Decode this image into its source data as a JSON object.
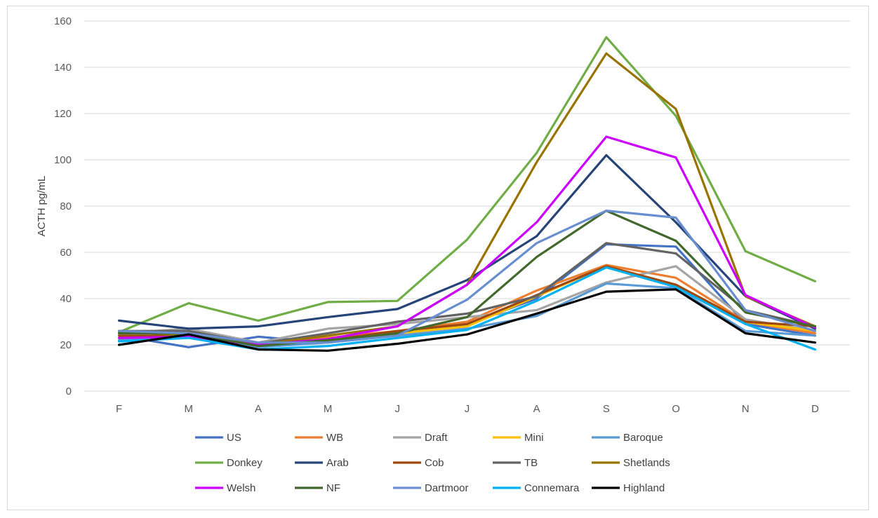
{
  "chart_data": {
    "type": "line",
    "title": "",
    "xlabel": "",
    "ylabel": "ACTH  pg/mL",
    "ylim": [
      0,
      160
    ],
    "yticks": [
      0,
      20,
      40,
      60,
      80,
      100,
      120,
      140,
      160
    ],
    "grid": "horizontal",
    "legend_position": "bottom",
    "categories": [
      "F",
      "M",
      "A",
      "M",
      "J",
      "J",
      "A",
      "S",
      "O",
      "N",
      "D"
    ],
    "series": [
      {
        "name": "US",
        "color": "#4472C4",
        "values": [
          24,
          19,
          23.5,
          21,
          25,
          29,
          40,
          63.5,
          62.5,
          29,
          24
        ]
      },
      {
        "name": "WB",
        "color": "#ED7D31",
        "values": [
          23,
          24,
          20,
          23,
          26,
          30,
          43.5,
          54.5,
          49,
          30,
          25
        ]
      },
      {
        "name": "Draft",
        "color": "#A5A5A5",
        "values": [
          25,
          27,
          21,
          27,
          29,
          32,
          35,
          47,
          54,
          31,
          26
        ]
      },
      {
        "name": "Mini",
        "color": "#FFC000",
        "values": [
          23,
          25,
          20,
          22,
          25,
          28,
          41,
          54,
          46,
          30,
          26
        ]
      },
      {
        "name": "Baroque",
        "color": "#5B9BD5",
        "values": [
          22,
          24,
          19,
          21,
          24,
          27,
          32.5,
          46.5,
          44.5,
          26,
          24
        ]
      },
      {
        "name": "Donkey",
        "color": "#70AD47",
        "values": [
          25.5,
          38,
          30.5,
          38.5,
          39,
          65.5,
          103,
          153,
          119,
          60.5,
          47.5
        ]
      },
      {
        "name": "Arab",
        "color": "#264478",
        "values": [
          30.5,
          27,
          28,
          32,
          35.5,
          48,
          67,
          102,
          73,
          41,
          27
        ]
      },
      {
        "name": "Cob",
        "color": "#9E480E",
        "values": [
          24,
          24,
          20,
          22,
          26,
          29,
          41.5,
          54,
          46,
          30,
          28
        ]
      },
      {
        "name": "TB",
        "color": "#636363",
        "values": [
          26,
          26,
          20.5,
          25,
          30,
          33.5,
          41,
          64,
          59.5,
          35,
          28
        ]
      },
      {
        "name": "Shetlands",
        "color": "#997300",
        "values": [
          26,
          24,
          20,
          24,
          28,
          46,
          99,
          146,
          122,
          41,
          28
        ]
      },
      {
        "name": "Welsh",
        "color": "#CC00FF",
        "values": [
          23,
          23.5,
          20,
          22.5,
          28,
          46,
          73,
          110,
          101,
          41.5,
          27.5
        ]
      },
      {
        "name": "NF",
        "color": "#43682B",
        "values": [
          25,
          25,
          19.5,
          22,
          25,
          32,
          58,
          78,
          65,
          34,
          28
        ]
      },
      {
        "name": "Dartmoor",
        "color": "#698ED0",
        "values": [
          26,
          25,
          21,
          21,
          24,
          39.5,
          64,
          78,
          75,
          35,
          26
        ]
      },
      {
        "name": "Connemara",
        "color": "#00B0F0",
        "values": [
          21.5,
          23,
          18,
          19.5,
          23,
          26.5,
          39,
          53.5,
          45,
          29,
          18
        ]
      },
      {
        "name": "Highland",
        "color": "#000000",
        "values": [
          20,
          24.5,
          18,
          17.5,
          20.5,
          24.5,
          33.5,
          43,
          44,
          25,
          21
        ]
      }
    ]
  }
}
